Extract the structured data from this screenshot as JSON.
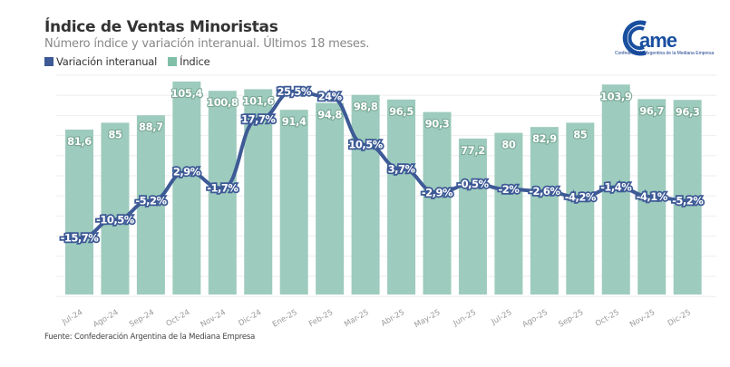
{
  "header": {
    "title": "Índice de Ventas Minoristas",
    "subtitle": "Número índice y variación interanual. Últimos 18 meses."
  },
  "logo": {
    "text": "came",
    "tagline": "Confederación Argentina de la Mediana Empresa"
  },
  "footer": {
    "source": "Fuente: Confederación Argentina de la Mediana Empresa"
  },
  "colors": {
    "bar": "#9dcbbd",
    "line": "#3d5a96",
    "label_text": "#ffffff",
    "logo": "#1a4fa0"
  },
  "chart_data": {
    "type": "bar",
    "title": "Índice de Ventas Minoristas",
    "subtitle": "Número índice y variación interanual. Últimos 18 meses.",
    "xlabel": "",
    "ylabel": "",
    "grid": true,
    "legend_position": "top-left",
    "legend": [
      "Variación interanual",
      "Índice"
    ],
    "categories": [
      "Jul-24",
      "Ago-24",
      "Sep-24",
      "Oct-24",
      "Nov-24",
      "Dic-24",
      "Ene-25",
      "Feb-25",
      "Mar-25",
      "Abr-25",
      "May-25",
      "Jun-25",
      "Jul-25",
      "Ago-25",
      "Sep-25",
      "Oct-25",
      "Nov-25",
      "Dic-25"
    ],
    "series": [
      {
        "name": "Índice",
        "type": "bar",
        "values": [
          81.6,
          85,
          88.7,
          105.4,
          100.8,
          101.6,
          91.4,
          94.8,
          98.8,
          96.5,
          90.3,
          77.2,
          80,
          82.9,
          85,
          103.9,
          96.7,
          96.3
        ],
        "labels": [
          "81,6",
          "85",
          "88,7",
          "105,4",
          "100,8",
          "101,6",
          "91,4",
          "94,8",
          "98,8",
          "96,5",
          "90,3",
          "77,2",
          "80",
          "82,9",
          "85",
          "103,9",
          "96,7",
          "96,3"
        ],
        "ylim": [
          0,
          110
        ]
      },
      {
        "name": "Variación interanual",
        "type": "line",
        "values": [
          -15.7,
          -10.5,
          -5.2,
          2.9,
          -1.7,
          17.7,
          25.5,
          24,
          10.5,
          3.7,
          -2.9,
          -0.5,
          -2,
          -2.6,
          -4.2,
          -1.4,
          -4.1,
          -5.2
        ],
        "labels": [
          "-15,7%",
          "-10,5%",
          "-5,2%",
          "2,9%",
          "-1,7%",
          "17,7%",
          "25,5%",
          "24%",
          "10,5%",
          "3,7%",
          "-2,9%",
          "-0,5%",
          "-2%",
          "-2,6%",
          "-4,2%",
          "-1,4%",
          "-4,1%",
          "-5,2%"
        ],
        "ylim": [
          -31,
          31
        ]
      }
    ]
  }
}
